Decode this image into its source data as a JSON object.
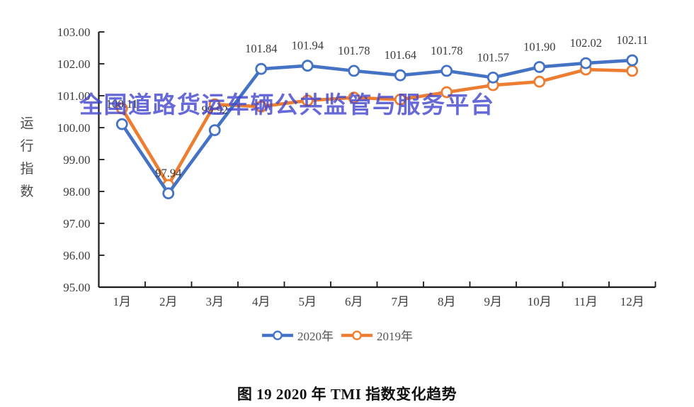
{
  "watermark": {
    "text": "全国道路货运车辆公共监管与服务平台",
    "color": "#4144cc"
  },
  "caption": "图 19  2020 年 TMI 指数变化趋势",
  "chart_data": {
    "type": "line",
    "title": "图 19 2020 年 TMI 指数变化趋势",
    "categories": [
      "1月",
      "2月",
      "3月",
      "4月",
      "5月",
      "6月",
      "7月",
      "8月",
      "9月",
      "10月",
      "11月",
      "12月"
    ],
    "xlabel": "",
    "ylabel": "运行指数",
    "ylim": [
      95,
      103
    ],
    "ytick_step": 1,
    "ytick_format": "0.00",
    "grid": false,
    "legend_position": "bottom-center",
    "series": [
      {
        "name": "2020年",
        "color": "#4472C4",
        "values": [
          100.11,
          97.94,
          99.92,
          101.84,
          101.94,
          101.78,
          101.64,
          101.78,
          101.57,
          101.9,
          102.02,
          102.11
        ],
        "data_labels": [
          "100.11",
          "97.94",
          "99.92",
          "101.84",
          "101.94",
          "101.78",
          "101.64",
          "101.78",
          "101.57",
          "101.90",
          "102.02",
          "102.11"
        ]
      },
      {
        "name": "2019年",
        "color": "#ED7D31",
        "values": [
          100.6,
          98.2,
          100.73,
          100.66,
          100.85,
          100.94,
          100.88,
          101.11,
          101.33,
          101.44,
          101.82,
          101.78
        ],
        "data_labels": null
      }
    ]
  }
}
